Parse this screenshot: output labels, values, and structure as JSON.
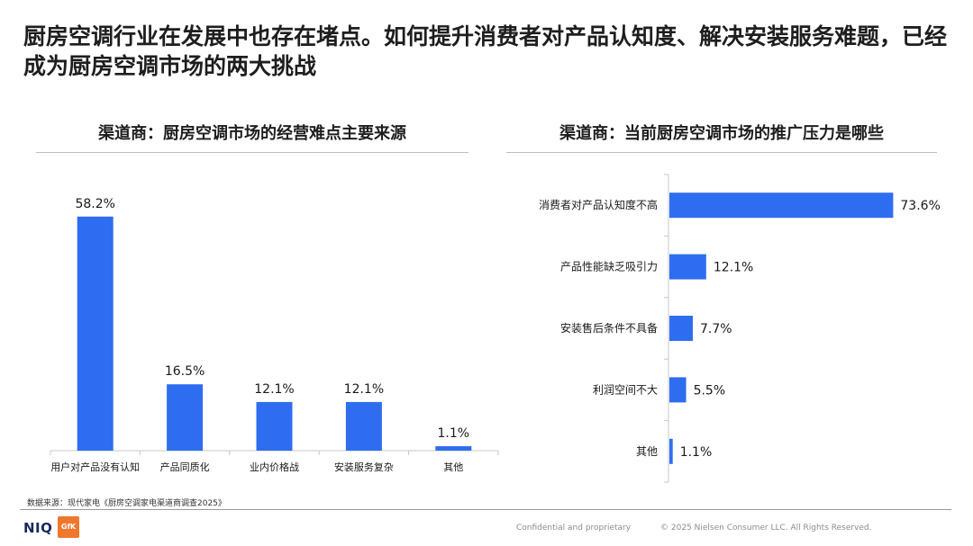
{
  "headline": "厨房空调行业在发展中也存在堵点。如何提升消费者对产品认知度、解决安装服务难题，已经成为厨房空调市场的两大挑战",
  "chart_data": [
    {
      "type": "bar",
      "title": "渠道商：厨房空调市场的经营难点主要来源",
      "categories": [
        "用户对产品没有认知",
        "产品同质化",
        "业内价格战",
        "安装服务复杂",
        "其他"
      ],
      "values": [
        58.2,
        16.5,
        12.1,
        12.1,
        1.1
      ],
      "value_labels": [
        "58.2%",
        "16.5%",
        "12.1%",
        "12.1%",
        "1.1%"
      ],
      "unit": "%",
      "ylim": [
        0,
        70
      ],
      "color": "#2f6df0"
    },
    {
      "type": "bar",
      "orientation": "horizontal",
      "title": "渠道商：当前厨房空调市场的推广压力是哪些",
      "categories": [
        "消费者对产品认知度不高",
        "产品性能缺乏吸引力",
        "安装售后条件不具备",
        "利润空间不大",
        "其他"
      ],
      "values": [
        73.6,
        12.1,
        7.7,
        5.5,
        1.1
      ],
      "value_labels": [
        "73.6%",
        "12.1%",
        "7.7%",
        "5.5%",
        "1.1%"
      ],
      "unit": "%",
      "xlim": [
        0,
        80
      ],
      "color": "#2f6df0"
    }
  ],
  "footer": {
    "source": "数据来源：现代家电《厨房空调家电渠道商调查2025》",
    "confidential": "Confidential and proprietary",
    "copyright": "© 2025 Nielsen Consumer LLC. All Rights Reserved.",
    "logo_niq": "NIQ",
    "logo_gfk": "GfK"
  }
}
